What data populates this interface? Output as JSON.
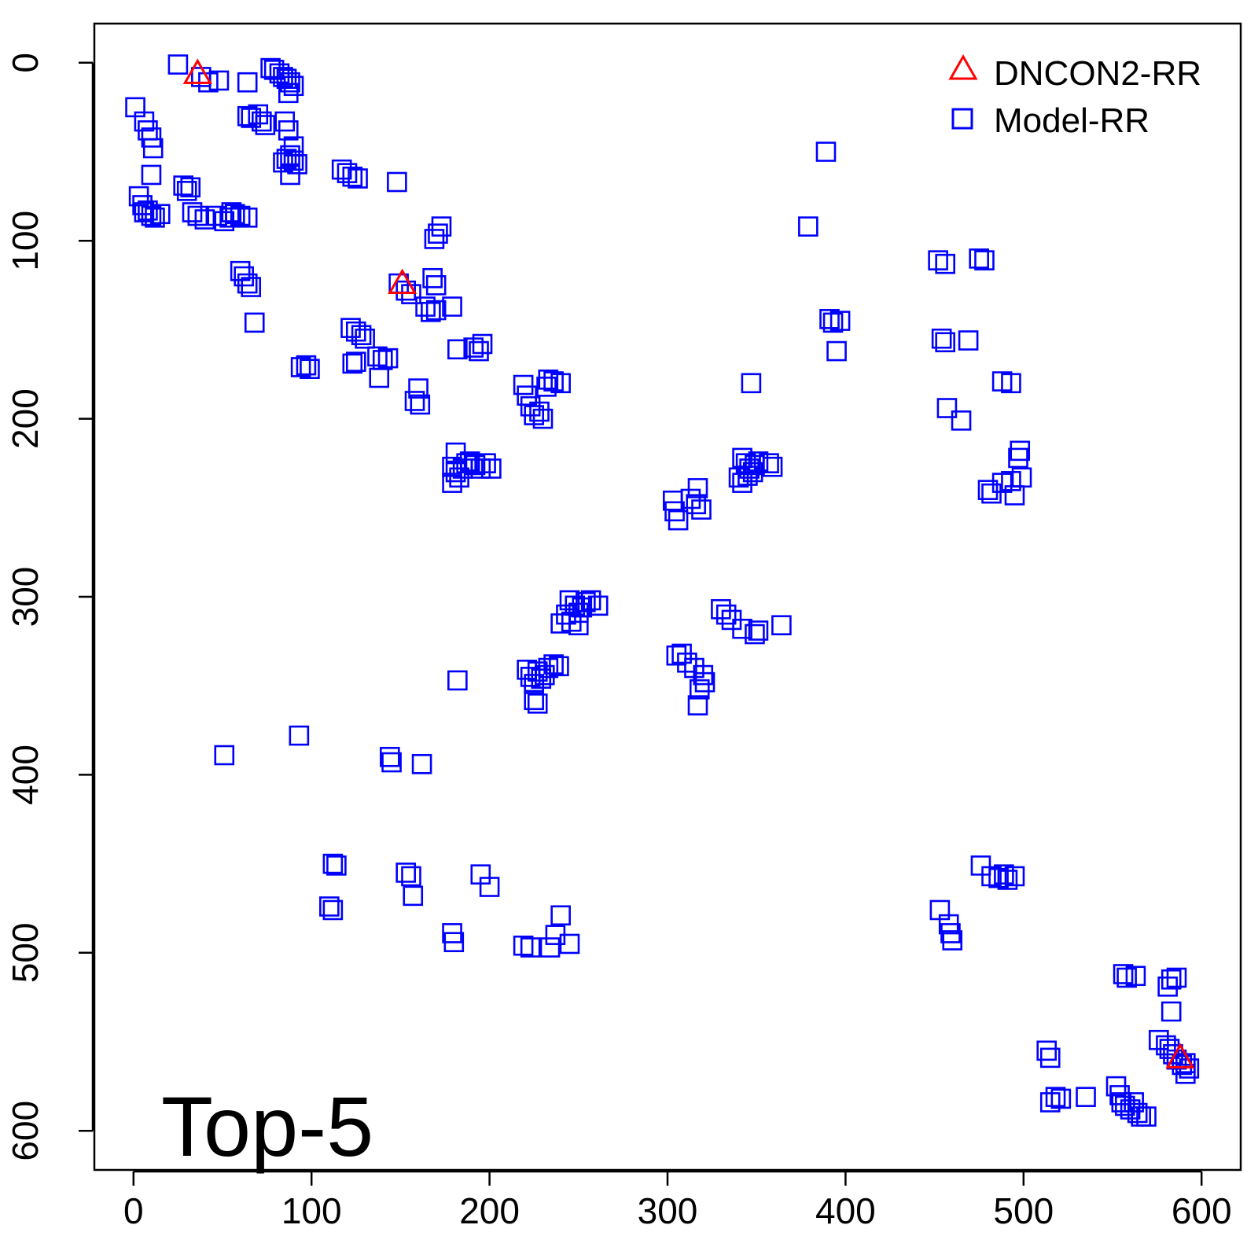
{
  "chart_data": {
    "type": "scatter",
    "title": "",
    "xlabel": "",
    "ylabel": "",
    "xlim": [
      -22,
      622
    ],
    "ylim": [
      -22,
      622
    ],
    "y_inverted": true,
    "grid": false,
    "legend_position": "top-right",
    "panel_label": "Top-5",
    "x_ticks": [
      0,
      100,
      200,
      300,
      400,
      500,
      600
    ],
    "x_tick_labels": [
      "0",
      "100",
      "200",
      "300",
      "400",
      "500",
      "600"
    ],
    "y_ticks": [
      0,
      100,
      200,
      300,
      400,
      500,
      600
    ],
    "y_tick_labels": [
      "0",
      "100",
      "200",
      "300",
      "400",
      "500",
      "600"
    ],
    "series": [
      {
        "name": "DNCON2-RR",
        "marker": "triangle",
        "color": "#ff0000",
        "points": [
          [
            36,
            6
          ],
          [
            151,
            124
          ],
          [
            588,
            559
          ]
        ]
      },
      {
        "name": "Model-RR",
        "marker": "square",
        "color": "#0000ff",
        "points": [
          [
            25,
            1
          ],
          [
            38,
            8
          ],
          [
            42,
            11
          ],
          [
            48,
            10
          ],
          [
            64,
            11
          ],
          [
            77,
            3
          ],
          [
            79,
            4
          ],
          [
            82,
            6
          ],
          [
            84,
            8
          ],
          [
            86,
            9
          ],
          [
            88,
            11
          ],
          [
            90,
            13
          ],
          [
            87,
            17
          ],
          [
            1,
            25
          ],
          [
            6,
            33
          ],
          [
            8,
            38
          ],
          [
            10,
            42
          ],
          [
            11,
            48
          ],
          [
            64,
            30
          ],
          [
            66,
            31
          ],
          [
            70,
            29
          ],
          [
            72,
            33
          ],
          [
            74,
            35
          ],
          [
            85,
            33
          ],
          [
            87,
            38
          ],
          [
            90,
            47
          ],
          [
            84,
            56
          ],
          [
            86,
            54
          ],
          [
            88,
            52
          ],
          [
            90,
            55
          ],
          [
            92,
            57
          ],
          [
            88,
            63
          ],
          [
            10,
            63
          ],
          [
            117,
            60
          ],
          [
            120,
            62
          ],
          [
            123,
            64
          ],
          [
            126,
            65
          ],
          [
            148,
            67
          ],
          [
            28,
            69
          ],
          [
            30,
            72
          ],
          [
            32,
            70
          ],
          [
            3,
            75
          ],
          [
            5,
            80
          ],
          [
            6,
            84
          ],
          [
            8,
            83
          ],
          [
            10,
            86
          ],
          [
            12,
            87
          ],
          [
            15,
            85
          ],
          [
            33,
            84
          ],
          [
            36,
            86
          ],
          [
            40,
            88
          ],
          [
            47,
            86
          ],
          [
            51,
            89
          ],
          [
            54,
            87
          ],
          [
            55,
            84
          ],
          [
            57,
            85
          ],
          [
            60,
            86
          ],
          [
            64,
            87
          ],
          [
            173,
            92
          ],
          [
            171,
            96
          ],
          [
            169,
            99
          ],
          [
            60,
            117
          ],
          [
            62,
            120
          ],
          [
            64,
            124
          ],
          [
            66,
            126
          ],
          [
            68,
            146
          ],
          [
            168,
            121
          ],
          [
            170,
            125
          ],
          [
            149,
            124
          ],
          [
            153,
            128
          ],
          [
            156,
            130
          ],
          [
            164,
            137
          ],
          [
            167,
            140
          ],
          [
            170,
            139
          ],
          [
            179,
            137
          ],
          [
            122,
            149
          ],
          [
            125,
            151
          ],
          [
            128,
            153
          ],
          [
            130,
            155
          ],
          [
            137,
            165
          ],
          [
            140,
            167
          ],
          [
            143,
            166
          ],
          [
            138,
            177
          ],
          [
            123,
            169
          ],
          [
            125,
            168
          ],
          [
            94,
            171
          ],
          [
            97,
            170
          ],
          [
            99,
            172
          ],
          [
            182,
            161
          ],
          [
            191,
            160
          ],
          [
            194,
            162
          ],
          [
            196,
            158
          ],
          [
            160,
            183
          ],
          [
            158,
            190
          ],
          [
            161,
            192
          ],
          [
            219,
            181
          ],
          [
            221,
            187
          ],
          [
            223,
            193
          ],
          [
            225,
            198
          ],
          [
            228,
            196
          ],
          [
            230,
            200
          ],
          [
            232,
            182
          ],
          [
            233,
            178
          ],
          [
            236,
            179
          ],
          [
            240,
            180
          ],
          [
            181,
            219
          ],
          [
            179,
            227
          ],
          [
            181,
            230
          ],
          [
            183,
            233
          ],
          [
            185,
            228
          ],
          [
            187,
            225
          ],
          [
            189,
            224
          ],
          [
            192,
            226
          ],
          [
            195,
            228
          ],
          [
            198,
            225
          ],
          [
            201,
            228
          ],
          [
            179,
            236
          ],
          [
            303,
            246
          ],
          [
            304,
            252
          ],
          [
            306,
            257
          ],
          [
            313,
            245
          ],
          [
            316,
            248
          ],
          [
            319,
            251
          ],
          [
            317,
            239
          ],
          [
            342,
            222
          ],
          [
            344,
            225
          ],
          [
            346,
            228
          ],
          [
            348,
            230
          ],
          [
            349,
            226
          ],
          [
            351,
            224
          ],
          [
            357,
            225
          ],
          [
            359,
            227
          ],
          [
            340,
            233
          ],
          [
            342,
            236
          ],
          [
            345,
            232
          ],
          [
            245,
            302
          ],
          [
            248,
            305
          ],
          [
            250,
            309
          ],
          [
            252,
            306
          ],
          [
            254,
            303
          ],
          [
            257,
            302
          ],
          [
            261,
            305
          ],
          [
            243,
            310
          ],
          [
            246,
            314
          ],
          [
            250,
            316
          ],
          [
            240,
            315
          ],
          [
            221,
            341
          ],
          [
            223,
            345
          ],
          [
            225,
            349
          ],
          [
            227,
            342
          ],
          [
            229,
            346
          ],
          [
            231,
            344
          ],
          [
            233,
            340
          ],
          [
            236,
            338
          ],
          [
            239,
            339
          ],
          [
            225,
            358
          ],
          [
            227,
            360
          ],
          [
            182,
            347
          ],
          [
            330,
            307
          ],
          [
            333,
            310
          ],
          [
            336,
            313
          ],
          [
            342,
            318
          ],
          [
            349,
            321
          ],
          [
            351,
            319
          ],
          [
            364,
            316
          ],
          [
            305,
            333
          ],
          [
            308,
            332
          ],
          [
            311,
            337
          ],
          [
            315,
            340
          ],
          [
            320,
            344
          ],
          [
            321,
            348
          ],
          [
            318,
            352
          ],
          [
            317,
            361
          ],
          [
            51,
            389
          ],
          [
            93,
            378
          ],
          [
            144,
            390
          ],
          [
            145,
            393
          ],
          [
            162,
            394
          ],
          [
            112,
            450
          ],
          [
            114,
            451
          ],
          [
            110,
            474
          ],
          [
            112,
            476
          ],
          [
            153,
            455
          ],
          [
            156,
            457
          ],
          [
            157,
            468
          ],
          [
            195,
            456
          ],
          [
            200,
            463
          ],
          [
            179,
            489
          ],
          [
            180,
            494
          ],
          [
            219,
            496
          ],
          [
            223,
            497
          ],
          [
            234,
            497
          ],
          [
            237,
            490
          ],
          [
            245,
            495
          ],
          [
            240,
            479
          ],
          [
            389,
            50
          ],
          [
            379,
            92
          ],
          [
            452,
            111
          ],
          [
            456,
            113
          ],
          [
            475,
            110
          ],
          [
            478,
            111
          ],
          [
            391,
            144
          ],
          [
            393,
            146
          ],
          [
            397,
            145
          ],
          [
            395,
            162
          ],
          [
            454,
            155
          ],
          [
            456,
            157
          ],
          [
            469,
            156
          ],
          [
            347,
            180
          ],
          [
            488,
            179
          ],
          [
            493,
            180
          ],
          [
            457,
            194
          ],
          [
            465,
            201
          ],
          [
            498,
            218
          ],
          [
            497,
            222
          ],
          [
            480,
            240
          ],
          [
            482,
            242
          ],
          [
            488,
            236
          ],
          [
            493,
            235
          ],
          [
            495,
            243
          ],
          [
            499,
            233
          ],
          [
            476,
            451
          ],
          [
            482,
            457
          ],
          [
            486,
            458
          ],
          [
            489,
            456
          ],
          [
            491,
            459
          ],
          [
            495,
            457
          ],
          [
            453,
            476
          ],
          [
            458,
            484
          ],
          [
            459,
            489
          ],
          [
            460,
            493
          ],
          [
            513,
            555
          ],
          [
            515,
            559
          ],
          [
            515,
            584
          ],
          [
            518,
            581
          ],
          [
            521,
            582
          ],
          [
            535,
            581
          ],
          [
            552,
            575
          ],
          [
            554,
            580
          ],
          [
            555,
            584
          ],
          [
            557,
            586
          ],
          [
            560,
            588
          ],
          [
            562,
            584
          ],
          [
            564,
            590
          ],
          [
            566,
            592
          ],
          [
            569,
            592
          ],
          [
            556,
            512
          ],
          [
            558,
            514
          ],
          [
            563,
            513
          ],
          [
            581,
            519
          ],
          [
            583,
            515
          ],
          [
            586,
            514
          ],
          [
            583,
            533
          ],
          [
            576,
            549
          ],
          [
            580,
            552
          ],
          [
            582,
            554
          ],
          [
            584,
            557
          ],
          [
            586,
            560
          ],
          [
            589,
            563
          ],
          [
            591,
            562
          ],
          [
            593,
            565
          ],
          [
            591,
            568
          ]
        ]
      }
    ]
  },
  "colors": {
    "background": "#ffffff",
    "axis": "#000000"
  }
}
